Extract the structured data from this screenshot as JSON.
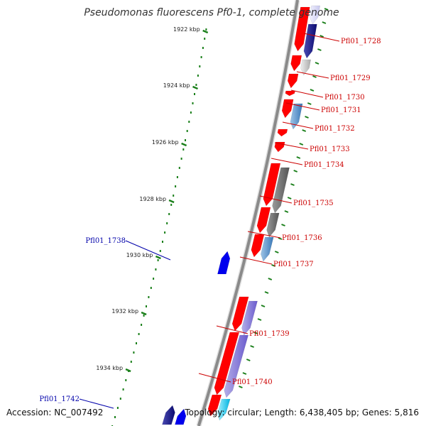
{
  "title": "Pseudomonas fluorescens Pf0-1, complete genome",
  "footer": {
    "accession": "Accession: NC_007492",
    "summary": "Topology: circular; Length: 6,438,405 bp; Genes: 5,816"
  },
  "colors": {
    "backbone": "#8a8a8a",
    "tick": "#1a7f1a",
    "forward_gene": "#ff0000",
    "reverse_gene": "#0000ee",
    "forward_label": "#cc0000",
    "reverse_label": "#0000aa"
  },
  "scale": {
    "unit": "kbp",
    "ticks": [
      "1922 kbp",
      "1924 kbp",
      "1926 kbp",
      "1928 kbp",
      "1930 kbp",
      "1932 kbp",
      "1934 kbp"
    ]
  },
  "genes": [
    {
      "label": "Pfl01_1728",
      "strand": "forward"
    },
    {
      "label": "Pfl01_1729",
      "strand": "forward"
    },
    {
      "label": "Pfl01_1730",
      "strand": "forward"
    },
    {
      "label": "Pfl01_1731",
      "strand": "forward"
    },
    {
      "label": "Pfl01_1732",
      "strand": "forward"
    },
    {
      "label": "Pfl01_1733",
      "strand": "forward"
    },
    {
      "label": "Pfl01_1734",
      "strand": "forward"
    },
    {
      "label": "Pfl01_1735",
      "strand": "forward"
    },
    {
      "label": "Pfl01_1736",
      "strand": "forward"
    },
    {
      "label": "Pfl01_1737",
      "strand": "forward"
    },
    {
      "label": "Pfl01_1738",
      "strand": "reverse"
    },
    {
      "label": "Pfl01_1739",
      "strand": "forward"
    },
    {
      "label": "Pfl01_1740",
      "strand": "forward"
    },
    {
      "label": "Pfl01_1742",
      "strand": "reverse"
    }
  ]
}
